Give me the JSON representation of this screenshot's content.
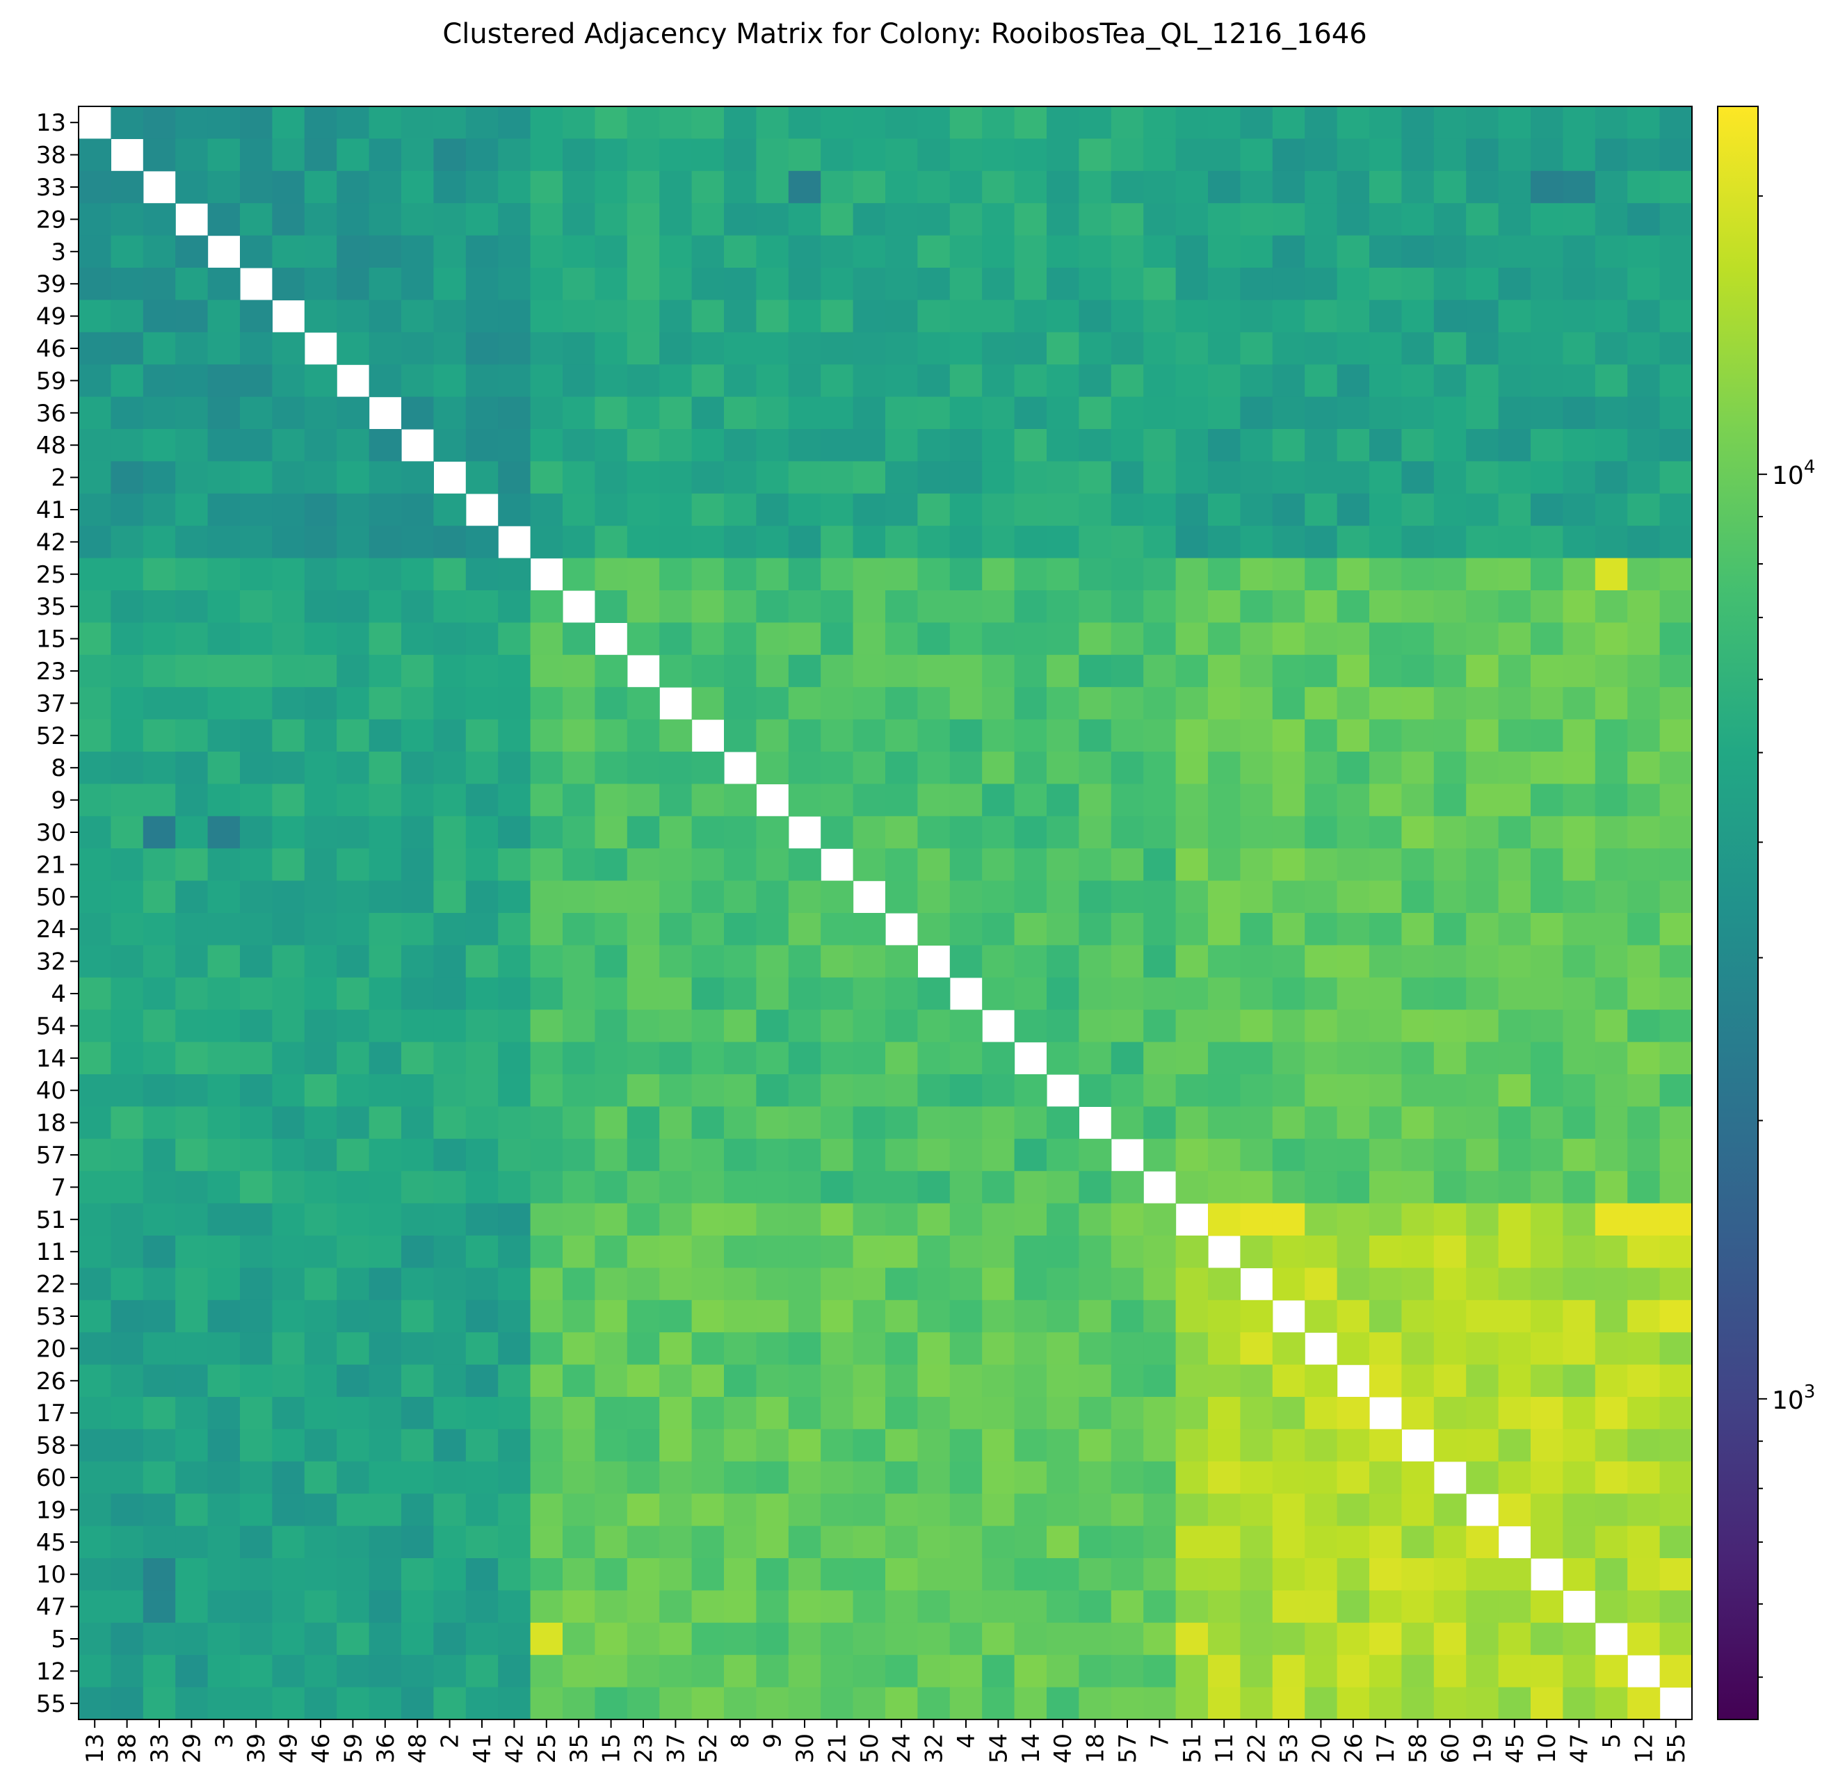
{
  "chart_data": {
    "type": "heatmap",
    "title": "Clustered Adjacency Matrix for Colony: RooibosTea_QL_1216_1646",
    "labels": [
      "13",
      "38",
      "33",
      "29",
      "3",
      "39",
      "49",
      "46",
      "59",
      "36",
      "48",
      "2",
      "41",
      "42",
      "25",
      "35",
      "15",
      "23",
      "37",
      "52",
      "8",
      "9",
      "30",
      "21",
      "50",
      "24",
      "32",
      "4",
      "54",
      "14",
      "40",
      "18",
      "57",
      "7",
      "51",
      "11",
      "22",
      "53",
      "20",
      "26",
      "17",
      "58",
      "60",
      "19",
      "45",
      "10",
      "47",
      "5",
      "12",
      "55"
    ],
    "clusters": [
      {
        "start": 0,
        "end": 13
      },
      {
        "start": 14,
        "end": 33
      },
      {
        "start": 34,
        "end": 49
      }
    ],
    "block_values": [
      [
        3800,
        5000,
        4400
      ],
      [
        5000,
        7500,
        9000
      ],
      [
        4400,
        9000,
        15500
      ]
    ],
    "highlights": [
      {
        "row": 14,
        "col": 47,
        "value": 20000
      },
      {
        "row": 47,
        "col": 14,
        "value": 20000
      },
      {
        "row": 34,
        "col": 35,
        "value": 21000
      },
      {
        "row": 34,
        "col": 36,
        "value": 22000
      },
      {
        "row": 34,
        "col": 37,
        "value": 22000
      },
      {
        "row": 34,
        "col": 47,
        "value": 22000
      },
      {
        "row": 34,
        "col": 48,
        "value": 22000
      },
      {
        "row": 34,
        "col": 49,
        "value": 22000
      },
      {
        "row": 37,
        "col": 49,
        "value": 21000
      },
      {
        "row": 40,
        "col": 47,
        "value": 20000
      },
      {
        "row": 47,
        "col": 40,
        "value": 20000
      },
      {
        "row": 47,
        "col": 48,
        "value": 19000
      },
      {
        "row": 48,
        "col": 47,
        "value": 19000
      },
      {
        "row": 22,
        "col": 2,
        "value": 2400
      },
      {
        "row": 22,
        "col": 4,
        "value": 2500
      },
      {
        "row": 2,
        "col": 22,
        "value": 2500
      },
      {
        "row": 2,
        "col": 45,
        "value": 2600
      },
      {
        "row": 2,
        "col": 46,
        "value": 2700
      },
      {
        "row": 45,
        "col": 2,
        "value": 2700
      },
      {
        "row": 46,
        "col": 2,
        "value": 2800
      }
    ],
    "diagonal": "none",
    "colorscale": "viridis",
    "color_scale_type": "log",
    "colorbar_range": [
      450,
      25000
    ],
    "colorbar_major_ticks": [
      {
        "value": 1000,
        "base": "10",
        "exp": "3"
      },
      {
        "value": 10000,
        "base": "10",
        "exp": "4"
      }
    ],
    "colorbar_minor_ticks": [
      500,
      600,
      700,
      800,
      900,
      2000,
      3000,
      4000,
      5000,
      6000,
      7000,
      8000,
      9000,
      20000
    ],
    "grid": false
  }
}
